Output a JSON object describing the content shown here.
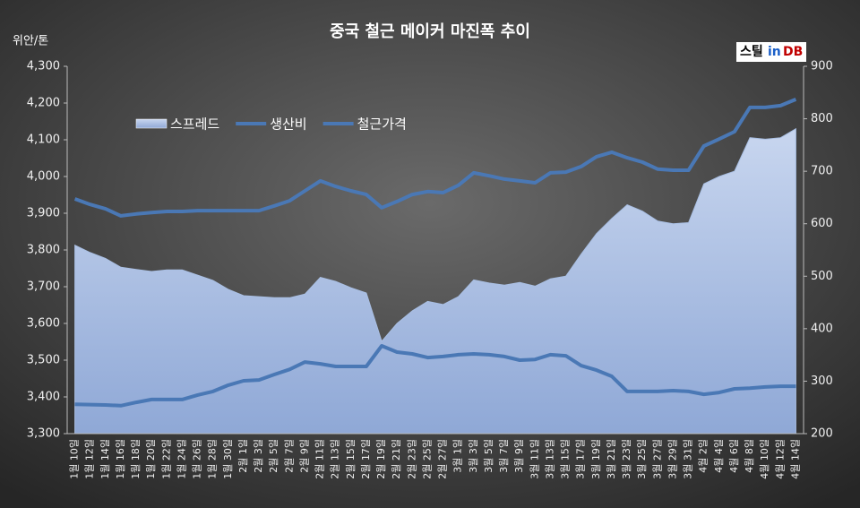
{
  "chart_data": {
    "type": "line",
    "title": "중국 철근 메이커 마진폭 추이",
    "y_axis_label": "위안/톤",
    "logo": {
      "brand": "스틸",
      "mid": "in",
      "tail": "DB"
    },
    "categories": [
      "1월 10일",
      "1월 12일",
      "1월 14일",
      "1월 16일",
      "1월 18일",
      "1월 20일",
      "1월 22일",
      "1월 24일",
      "1월 26일",
      "1월 28일",
      "1월 30일",
      "2월 1일",
      "2월 3일",
      "2월 5일",
      "2월 7일",
      "2월 9일",
      "2월 11일",
      "2월 13일",
      "2월 15일",
      "2월 17일",
      "2월 19일",
      "2월 21일",
      "2월 23일",
      "2월 25일",
      "2월 27일",
      "3월 1일",
      "3월 3일",
      "3월 5일",
      "3월 7일",
      "3월 9일",
      "3월 11일",
      "3월 13일",
      "3월 15일",
      "3월 17일",
      "3월 19일",
      "3월 21일",
      "3월 23일",
      "3월 25일",
      "3월 27일",
      "3월 29일",
      "3월 31일",
      "4월 2일",
      "4월 4일",
      "4월 6일",
      "4월 8일",
      "4월 10일",
      "4월 12일",
      "4월 14일"
    ],
    "series": [
      {
        "name": "스프레드",
        "color": "#a9bfe3",
        "axis": "y2",
        "style": "area",
        "values": [
          559,
          545,
          534,
          517,
          513,
          509,
          512,
          512,
          502,
          492,
          475,
          463,
          461,
          459,
          459,
          466,
          498,
          490,
          478,
          468,
          376,
          410,
          434,
          452,
          446,
          461,
          493,
          487,
          483,
          488,
          481,
          495,
          500,
          542,
          581,
          610,
          636,
          624,
          605,
          600,
          602,
          676,
          690,
          700,
          764,
          761,
          764,
          781
        ]
      },
      {
        "name": "생산비",
        "color": "#4a78b5",
        "values": [
          3380,
          3379,
          3378,
          3376,
          3385,
          3393,
          3393,
          3393,
          3405,
          3415,
          3432,
          3444,
          3446,
          3461,
          3475,
          3495,
          3490,
          3483,
          3483,
          3483,
          3539,
          3522,
          3517,
          3507,
          3510,
          3515,
          3517,
          3515,
          3510,
          3500,
          3502,
          3515,
          3512,
          3485,
          3473,
          3456,
          3415,
          3415,
          3415,
          3417,
          3415,
          3407,
          3412,
          3422,
          3424,
          3427,
          3429,
          3429
        ]
      },
      {
        "name": "철근가격",
        "color": "#4a78b5",
        "values": [
          3939,
          3924,
          3912,
          3893,
          3898,
          3902,
          3905,
          3905,
          3907,
          3907,
          3907,
          3907,
          3907,
          3920,
          3934,
          3961,
          3988,
          3973,
          3961,
          3951,
          3915,
          3932,
          3951,
          3959,
          3956,
          3976,
          4010,
          4002,
          3993,
          3988,
          3983,
          4010,
          4012,
          4027,
          4054,
          4066,
          4051,
          4039,
          4020,
          4017,
          4017,
          4083,
          4102,
          4122,
          4188,
          4188,
          4193,
          4210
        ]
      }
    ],
    "ylim": [
      3300,
      4300
    ],
    "yticks": [
      {
        "value": 3300,
        "label": "3,300"
      },
      {
        "value": 3400,
        "label": "3,400"
      },
      {
        "value": 3500,
        "label": "3,500"
      },
      {
        "value": 3600,
        "label": "3,600"
      },
      {
        "value": 3700,
        "label": "3,700"
      },
      {
        "value": 3800,
        "label": "3,800"
      },
      {
        "value": 3900,
        "label": "3,900"
      },
      {
        "value": 4000,
        "label": "4,000"
      },
      {
        "value": 4100,
        "label": "4,100"
      },
      {
        "value": 4200,
        "label": "4,200"
      },
      {
        "value": 4300,
        "label": "4,300"
      }
    ],
    "y2lim": [
      200,
      900
    ],
    "y2ticks": [
      200,
      300,
      400,
      500,
      600,
      700,
      800,
      900
    ],
    "grid": false
  }
}
